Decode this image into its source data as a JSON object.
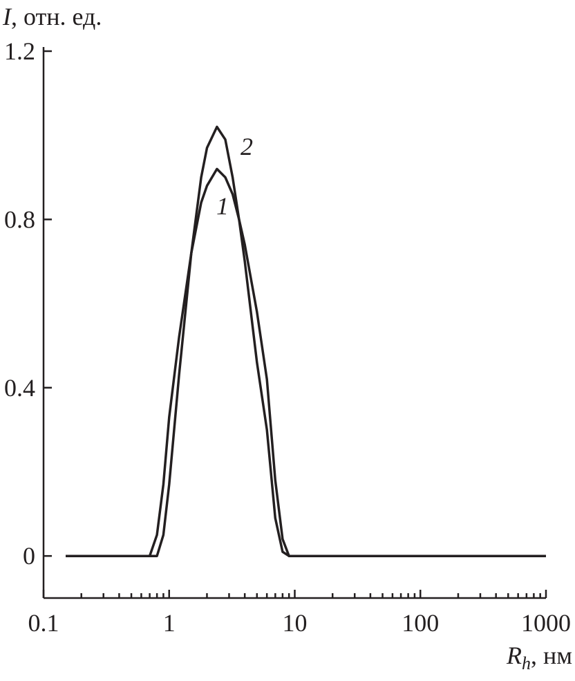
{
  "chart_data": {
    "type": "line",
    "ylabel": {
      "symbol": "I",
      "unit": ", отн. ед."
    },
    "xlabel": {
      "symbol": "R",
      "subscript": "h",
      "unit": ", нм"
    },
    "xscale": "log",
    "xlim": [
      0.1,
      1000
    ],
    "xticks": [
      0.1,
      1,
      10,
      100,
      1000
    ],
    "xminorticks": [
      0.2,
      0.3,
      0.4,
      0.5,
      0.6,
      0.7,
      0.8,
      0.9,
      2,
      3,
      4,
      5,
      6,
      7,
      8,
      9,
      20,
      30,
      40,
      50,
      60,
      70,
      80,
      90,
      200,
      300,
      400,
      500,
      600,
      700,
      800,
      900
    ],
    "ylim": [
      -0.1,
      1.2
    ],
    "yticks": [
      0,
      0.4,
      0.8,
      1.2
    ],
    "grid": false,
    "x": [
      0.15,
      0.5,
      0.7,
      0.8,
      0.9,
      1.0,
      1.2,
      1.5,
      1.8,
      2.0,
      2.4,
      2.8,
      3.2,
      3.6,
      4.0,
      5.0,
      6.0,
      7.0,
      8.0,
      9.0,
      10,
      100,
      1000
    ],
    "series": [
      {
        "name": "1",
        "color": "#231f20",
        "values": [
          0,
          0,
          0,
          0.05,
          0.17,
          0.33,
          0.52,
          0.72,
          0.84,
          0.88,
          0.92,
          0.9,
          0.86,
          0.8,
          0.74,
          0.58,
          0.42,
          0.18,
          0.04,
          0,
          0,
          0,
          0
        ]
      },
      {
        "name": "2",
        "color": "#231f20",
        "values": [
          0,
          0,
          0,
          0,
          0.05,
          0.17,
          0.43,
          0.72,
          0.9,
          0.97,
          1.02,
          0.99,
          0.9,
          0.8,
          0.7,
          0.46,
          0.3,
          0.09,
          0.01,
          0,
          0,
          0,
          0
        ]
      }
    ]
  }
}
